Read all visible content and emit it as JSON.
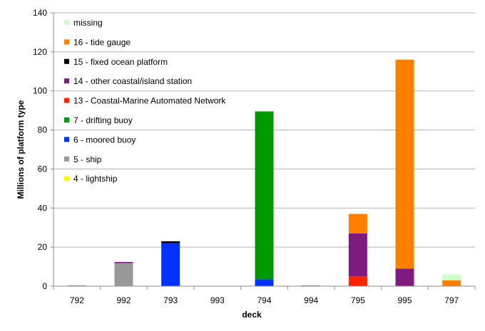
{
  "chart_data": {
    "type": "bar",
    "stacked": true,
    "xlabel": "deck",
    "ylabel": "Millions of platform type",
    "ylim": [
      0,
      140
    ],
    "yticks": [
      0,
      20,
      40,
      60,
      80,
      100,
      120,
      140
    ],
    "grid": true,
    "legend_position": "top-left inside",
    "categories": [
      "792",
      "992",
      "793",
      "993",
      "794",
      "994",
      "795",
      "995",
      "797"
    ],
    "series": [
      {
        "name": "4 - lightship",
        "color": "#ffff00",
        "values": [
          0,
          0,
          0,
          0,
          0,
          0,
          0,
          0,
          0
        ]
      },
      {
        "name": "5 - ship",
        "color": "#999999",
        "values": [
          0.2,
          11.8,
          0,
          0.1,
          0,
          0,
          0,
          0,
          0
        ]
      },
      {
        "name": "6 - moored buoy",
        "color": "#0033ff",
        "values": [
          0,
          0,
          22,
          0,
          3.5,
          0.3,
          0,
          0,
          0
        ]
      },
      {
        "name": "7 - drifting buoy",
        "color": "#009900",
        "values": [
          0,
          0,
          0,
          0,
          86,
          0,
          0,
          0,
          0
        ]
      },
      {
        "name": "13 - Coastal-Marine Automated Network",
        "color": "#ff2200",
        "values": [
          0,
          0,
          0,
          0,
          0,
          0,
          5,
          0,
          0
        ]
      },
      {
        "name": "14 - other coastal/island station",
        "color": "#7f1a80",
        "values": [
          0.1,
          0.6,
          0,
          0,
          0,
          0,
          22,
          9,
          0
        ]
      },
      {
        "name": "15 - fixed ocean platform",
        "color": "#000000",
        "values": [
          0,
          0,
          1,
          0,
          0,
          0,
          0,
          0,
          0
        ]
      },
      {
        "name": "16 - tide gauge",
        "color": "#ff8000",
        "values": [
          0,
          0,
          0,
          0,
          0,
          0,
          10,
          107,
          3
        ]
      },
      {
        "name": "missing",
        "color": "#ccffcc",
        "values": [
          0,
          0,
          0,
          0,
          0,
          0,
          0,
          0,
          3
        ]
      }
    ]
  }
}
